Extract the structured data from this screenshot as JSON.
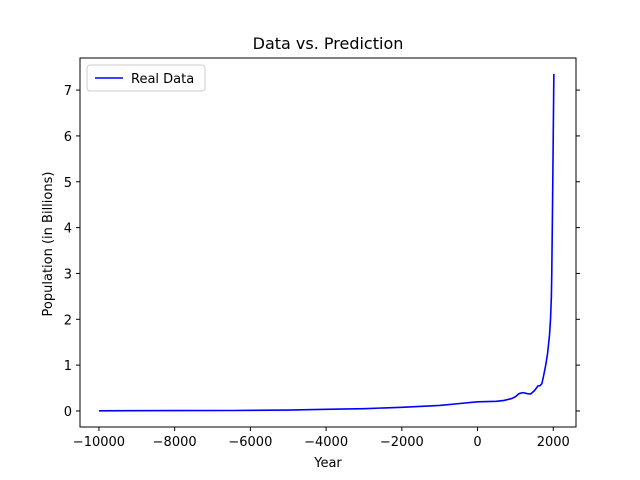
{
  "chart_data": {
    "type": "line",
    "title": "Data vs. Prediction",
    "xlabel": "Year",
    "ylabel": "Population (in Billions)",
    "xlim": [
      -10500,
      2600
    ],
    "ylim": [
      -0.35,
      7.7
    ],
    "xticks": [
      -10000,
      -8000,
      -6000,
      -4000,
      -2000,
      0,
      2000
    ],
    "xtick_labels": [
      "−10000",
      "−8000",
      "−6000",
      "−4000",
      "−2000",
      "0",
      "2000"
    ],
    "yticks": [
      0,
      1,
      2,
      3,
      4,
      5,
      6,
      7
    ],
    "ytick_labels": [
      "0",
      "1",
      "2",
      "3",
      "4",
      "5",
      "6",
      "7"
    ],
    "grid": false,
    "legend_position": "upper-left",
    "series": [
      {
        "name": "Real Data",
        "color": "#0000ff",
        "x": [
          -10000,
          -8000,
          -6500,
          -5000,
          -4000,
          -3000,
          -2000,
          -1000,
          -500,
          0,
          500,
          700,
          900,
          1000,
          1100,
          1200,
          1300,
          1400,
          1500,
          1600,
          1650,
          1700,
          1750,
          1800,
          1850,
          1900,
          1927,
          1950,
          1960,
          1974,
          1987,
          1999,
          2011,
          2015
        ],
        "y": [
          0.004,
          0.008,
          0.01,
          0.02,
          0.035,
          0.05,
          0.08,
          0.12,
          0.16,
          0.2,
          0.21,
          0.23,
          0.27,
          0.31,
          0.38,
          0.4,
          0.38,
          0.37,
          0.44,
          0.55,
          0.55,
          0.6,
          0.79,
          1.0,
          1.26,
          1.65,
          2.0,
          2.5,
          3.0,
          4.0,
          5.0,
          6.0,
          7.0,
          7.35
        ]
      }
    ]
  }
}
